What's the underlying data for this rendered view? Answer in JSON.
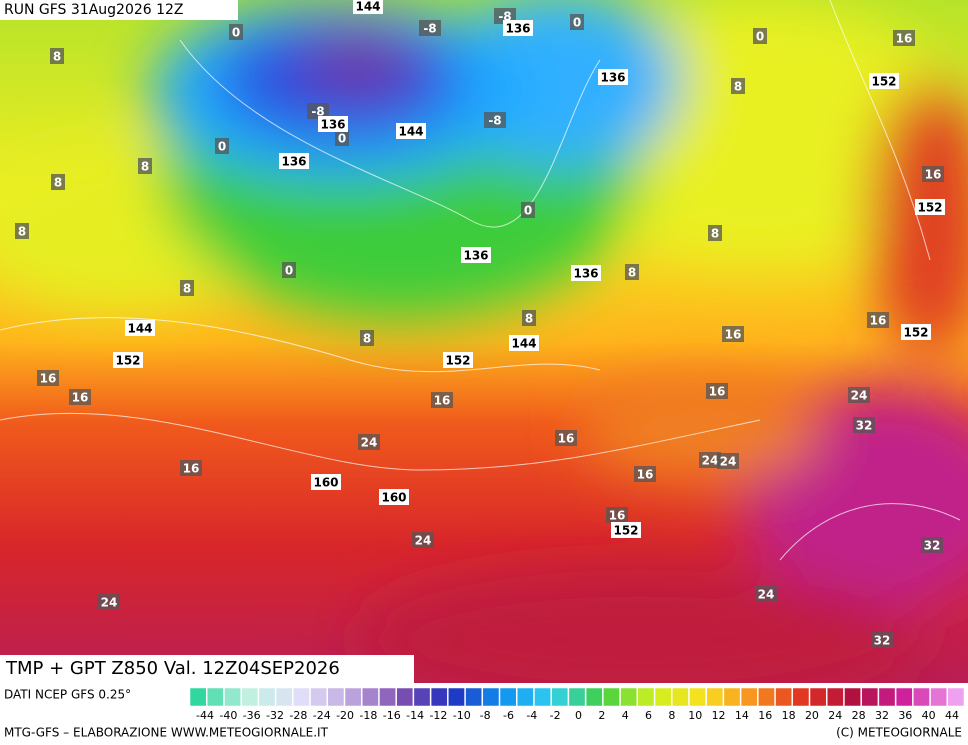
{
  "header": {
    "run": "RUN GFS 31Aug2026 12Z"
  },
  "map": {
    "temperature_labels": [
      -8,
      -8,
      0,
      0,
      0,
      16,
      8,
      8,
      -8,
      -8,
      0,
      0,
      8,
      8,
      16,
      0,
      8,
      8,
      0,
      8,
      8,
      16,
      8,
      8,
      16,
      16,
      16,
      16,
      16,
      24,
      24,
      16,
      32,
      24,
      24,
      16,
      16,
      16,
      24,
      32,
      24,
      24,
      32
    ],
    "geopotential_labels": [
      144,
      136,
      136,
      152,
      136,
      144,
      136,
      152,
      136,
      136,
      144,
      144,
      152,
      152,
      152,
      160,
      160,
      152
    ],
    "caption": "TMP + GPT Z850 Val. 12Z04SEP2026"
  },
  "legend": {
    "source": "DATI NCEP GFS 0.25°",
    "ticks": [
      -44,
      -40,
      -36,
      -32,
      -28,
      -24,
      -20,
      -18,
      -16,
      -14,
      -12,
      -10,
      -8,
      -6,
      -4,
      -2,
      0,
      2,
      4,
      6,
      8,
      10,
      12,
      14,
      16,
      18,
      20,
      24,
      28,
      32,
      36,
      40,
      44
    ]
  },
  "footer": {
    "left": "MTG-GFS – ELABORAZIONE WWW.METEOGIORNALE.IT",
    "right": "(C) METEOGIORNALE"
  }
}
